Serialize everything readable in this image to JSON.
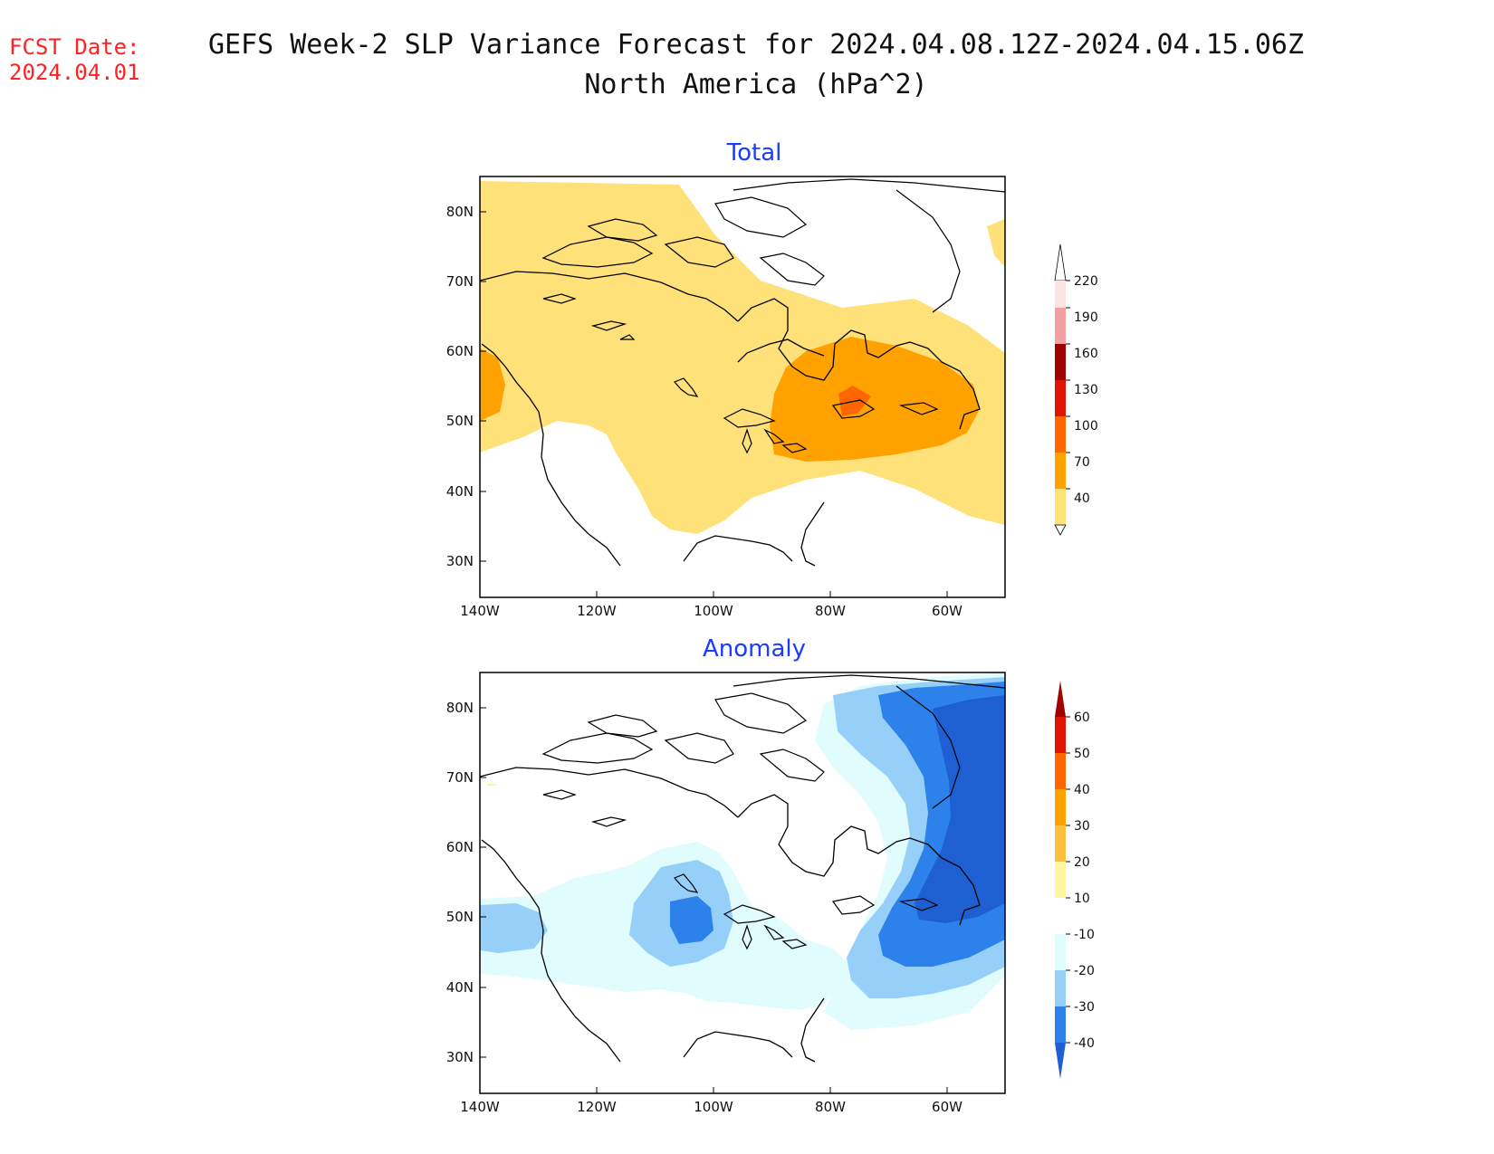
{
  "header": {
    "fcst_label": "FCST Date:",
    "fcst_date": "2024.04.01",
    "title_line1": "GEFS Week-2 SLP Variance Forecast for 2024.04.08.12Z-2024.04.15.06Z",
    "title_line2": "North America (hPa^2)"
  },
  "panels": {
    "total": {
      "title": "Total"
    },
    "anomaly": {
      "title": "Anomaly"
    }
  },
  "axes": {
    "lat_labels": [
      "80N",
      "70N",
      "60N",
      "50N",
      "40N",
      "30N"
    ],
    "lon_labels": [
      "140W",
      "120W",
      "100W",
      "80W",
      "60W"
    ]
  },
  "colorbars": {
    "total": {
      "labels": [
        "220",
        "190",
        "160",
        "130",
        "100",
        "70",
        "40"
      ],
      "colors": [
        "#fde4e4",
        "#f4a0a0",
        "#a00000",
        "#e01400",
        "#ff6600",
        "#ffa200",
        "#ffe17a"
      ]
    },
    "anomaly": {
      "labels": [
        "60",
        "50",
        "40",
        "30",
        "20",
        "10",
        "-10",
        "-20",
        "-30",
        "-40"
      ],
      "colors_top": [
        "#a00000",
        "#e01400",
        "#ff6600",
        "#ffa200",
        "#ffc040",
        "#fff4a0",
        "#ffffff",
        "#e0fcfc",
        "#96d0f8",
        "#2c82ea",
        "#1e5fd2"
      ]
    }
  },
  "map_colors": {
    "total_light": "#ffe17a",
    "total_mid": "#ffa200",
    "total_high": "#ff6600",
    "anom_c1": "#e0fcfc",
    "anom_c2": "#96d0f8",
    "anom_c3": "#2c82ea",
    "anom_c4": "#1e5fd2"
  }
}
